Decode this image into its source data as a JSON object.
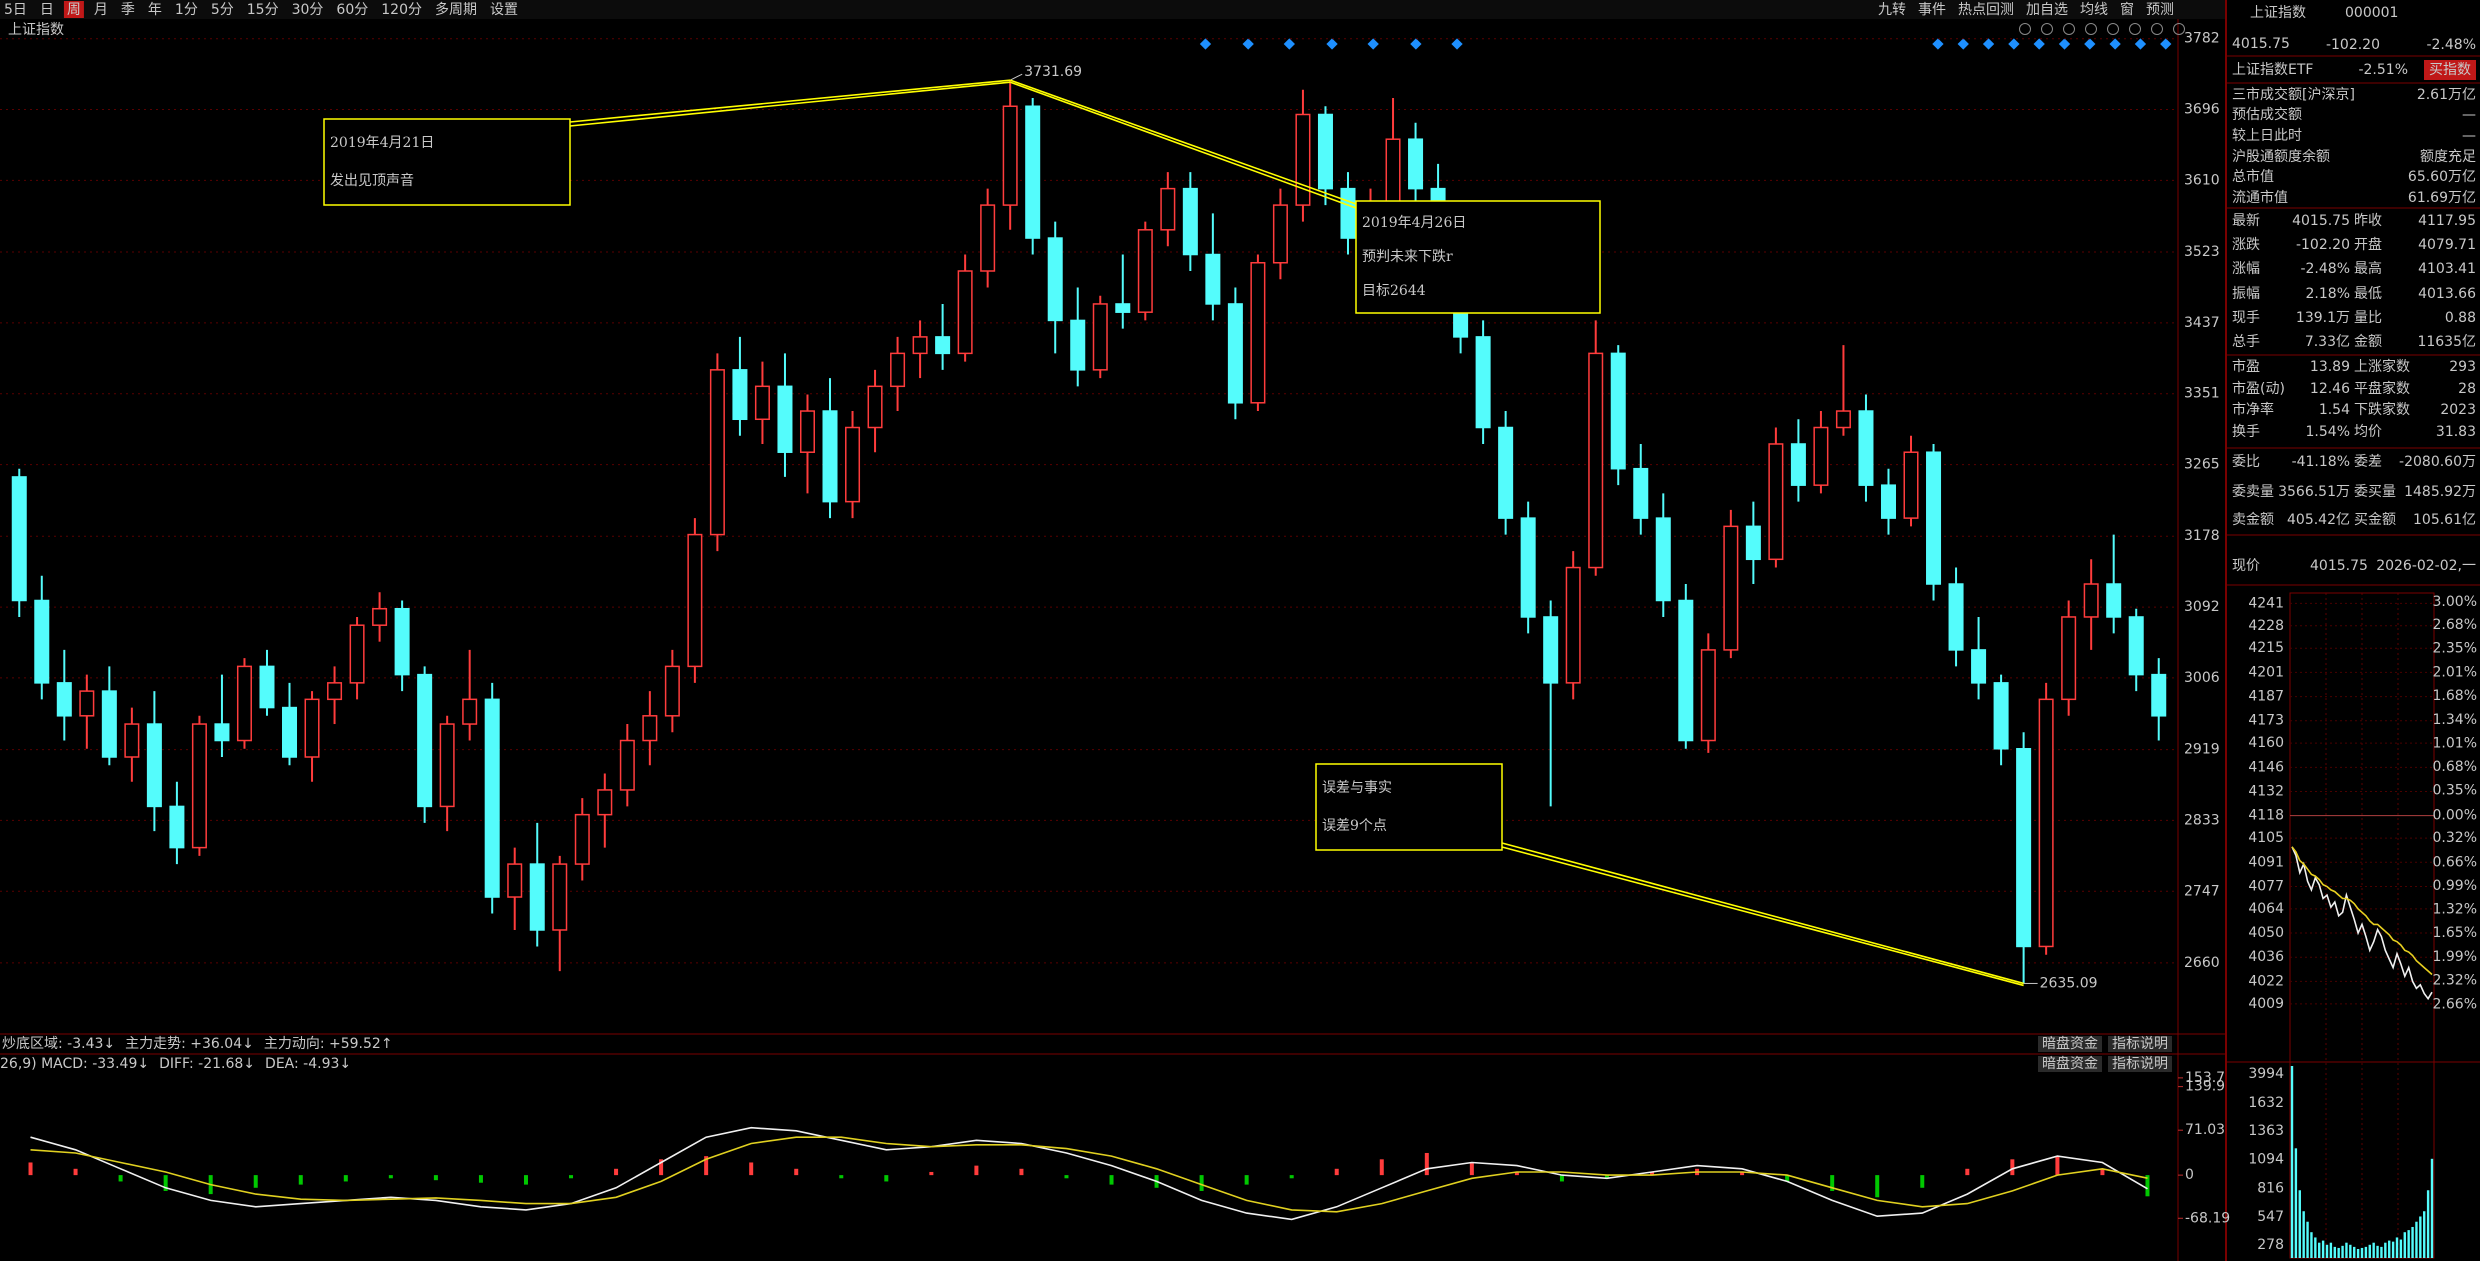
{
  "toolbar": {
    "left": [
      "5日",
      "日",
      "周",
      "月",
      "季",
      "年",
      "1分",
      "5分",
      "15分",
      "30分",
      "60分",
      "120分",
      "多周期",
      "设置"
    ],
    "selected": 2,
    "right": [
      "九转",
      "事件",
      "热点回测",
      "加自选",
      "均线",
      "窗",
      "预测"
    ]
  },
  "chart_data": [
    {
      "type": "candlestick",
      "title": "上证指数",
      "ylim": [
        2581,
        3795
      ],
      "yticks": [
        2660,
        2747,
        2833,
        2919,
        3006,
        3092,
        3178,
        3265,
        3351,
        3437,
        3523,
        3610,
        3696,
        3782
      ],
      "grid": true,
      "up_color": "#ff3c3c",
      "down_color": "#54fcfc",
      "axis_color": "#e03c3c",
      "grid_color": "#5a0000",
      "candles": [
        [
          3250,
          3260,
          3080,
          3100
        ],
        [
          3100,
          3130,
          2980,
          3000
        ],
        [
          3000,
          3040,
          2930,
          2960
        ],
        [
          2960,
          3010,
          2920,
          2990
        ],
        [
          2990,
          3020,
          2900,
          2910
        ],
        [
          2910,
          2970,
          2880,
          2950
        ],
        [
          2950,
          2990,
          2820,
          2850
        ],
        [
          2850,
          2880,
          2780,
          2800
        ],
        [
          2800,
          2960,
          2790,
          2950
        ],
        [
          2950,
          3010,
          2910,
          2930
        ],
        [
          2930,
          3030,
          2920,
          3020
        ],
        [
          3020,
          3040,
          2960,
          2970
        ],
        [
          2970,
          3000,
          2900,
          2910
        ],
        [
          2910,
          2990,
          2880,
          2980
        ],
        [
          2980,
          3020,
          2950,
          3000
        ],
        [
          3000,
          3080,
          2980,
          3070
        ],
        [
          3070,
          3110,
          3050,
          3090
        ],
        [
          3090,
          3100,
          2990,
          3010
        ],
        [
          3010,
          3020,
          2830,
          2850
        ],
        [
          2850,
          2960,
          2820,
          2950
        ],
        [
          2950,
          3040,
          2930,
          2980
        ],
        [
          2980,
          3000,
          2720,
          2740
        ],
        [
          2740,
          2800,
          2700,
          2780
        ],
        [
          2780,
          2830,
          2680,
          2700
        ],
        [
          2700,
          2790,
          2650,
          2780
        ],
        [
          2780,
          2860,
          2760,
          2840
        ],
        [
          2840,
          2890,
          2800,
          2870
        ],
        [
          2870,
          2950,
          2850,
          2930
        ],
        [
          2930,
          2990,
          2900,
          2960
        ],
        [
          2960,
          3040,
          2940,
          3020
        ],
        [
          3020,
          3200,
          3000,
          3180
        ],
        [
          3180,
          3400,
          3160,
          3380
        ],
        [
          3380,
          3420,
          3300,
          3320
        ],
        [
          3320,
          3390,
          3290,
          3360
        ],
        [
          3360,
          3400,
          3250,
          3280
        ],
        [
          3280,
          3350,
          3230,
          3330
        ],
        [
          3330,
          3370,
          3200,
          3220
        ],
        [
          3220,
          3330,
          3200,
          3310
        ],
        [
          3310,
          3380,
          3280,
          3360
        ],
        [
          3360,
          3420,
          3330,
          3400
        ],
        [
          3400,
          3440,
          3370,
          3420
        ],
        [
          3420,
          3460,
          3380,
          3400
        ],
        [
          3400,
          3520,
          3390,
          3500
        ],
        [
          3500,
          3600,
          3480,
          3580
        ],
        [
          3580,
          3731.69,
          3550,
          3700
        ],
        [
          3700,
          3710,
          3520,
          3540
        ],
        [
          3540,
          3560,
          3400,
          3440
        ],
        [
          3440,
          3480,
          3360,
          3380
        ],
        [
          3380,
          3470,
          3370,
          3460
        ],
        [
          3460,
          3520,
          3430,
          3450
        ],
        [
          3450,
          3560,
          3440,
          3550
        ],
        [
          3550,
          3620,
          3530,
          3600
        ],
        [
          3600,
          3620,
          3500,
          3520
        ],
        [
          3520,
          3570,
          3440,
          3460
        ],
        [
          3460,
          3480,
          3320,
          3340
        ],
        [
          3340,
          3520,
          3330,
          3510
        ],
        [
          3510,
          3600,
          3490,
          3580
        ],
        [
          3580,
          3720,
          3560,
          3690
        ],
        [
          3690,
          3700,
          3580,
          3600
        ],
        [
          3600,
          3620,
          3520,
          3540
        ],
        [
          3540,
          3600,
          3510,
          3580
        ],
        [
          3580,
          3710,
          3570,
          3660
        ],
        [
          3660,
          3680,
          3580,
          3600
        ],
        [
          3600,
          3630,
          3520,
          3540
        ],
        [
          3540,
          3560,
          3400,
          3420
        ],
        [
          3420,
          3440,
          3290,
          3310
        ],
        [
          3310,
          3330,
          3180,
          3200
        ],
        [
          3200,
          3220,
          3060,
          3080
        ],
        [
          3080,
          3100,
          2850,
          3000
        ],
        [
          3000,
          3160,
          2980,
          3140
        ],
        [
          3140,
          3440,
          3130,
          3400
        ],
        [
          3400,
          3410,
          3240,
          3260
        ],
        [
          3260,
          3290,
          3180,
          3200
        ],
        [
          3200,
          3230,
          3080,
          3100
        ],
        [
          3100,
          3120,
          2920,
          2930
        ],
        [
          2930,
          3060,
          2915,
          3040
        ],
        [
          3040,
          3210,
          3030,
          3190
        ],
        [
          3190,
          3220,
          3120,
          3150
        ],
        [
          3150,
          3310,
          3140,
          3290
        ],
        [
          3290,
          3320,
          3220,
          3240
        ],
        [
          3240,
          3330,
          3230,
          3310
        ],
        [
          3310,
          3410,
          3300,
          3330
        ],
        [
          3330,
          3350,
          3220,
          3240
        ],
        [
          3240,
          3260,
          3180,
          3200
        ],
        [
          3200,
          3300,
          3190,
          3280
        ],
        [
          3280,
          3290,
          3100,
          3120
        ],
        [
          3120,
          3140,
          3020,
          3040
        ],
        [
          3040,
          3080,
          2980,
          3000
        ],
        [
          3000,
          3010,
          2900,
          2920
        ],
        [
          2920,
          2940,
          2635.09,
          2680
        ],
        [
          2680,
          3000,
          2670,
          2980
        ],
        [
          2980,
          3100,
          2960,
          3080
        ],
        [
          3080,
          3150,
          3040,
          3120
        ],
        [
          3120,
          3180,
          3060,
          3080
        ],
        [
          3080,
          3090,
          2990,
          3010
        ],
        [
          3010,
          3030,
          2930,
          2960
        ]
      ],
      "annotations": [
        {
          "lines": [
            "2019年4月21日",
            "发出见顶声音"
          ]
        },
        {
          "lines": [
            "2019年4月26日",
            "预判未来下跌r",
            "目标2644"
          ]
        },
        {
          "lines": [
            "误差与事实",
            "误差9个点"
          ]
        }
      ],
      "annotation_color": "#ffff00",
      "indicator_bar": [
        {
          "text": "炒底区域: -3.43↓",
          "color": "#c8c8c8"
        },
        {
          "text": "主力走势: +36.04↓",
          "color": "#ff9a1a"
        },
        {
          "text": "主力动向: +59.52↑",
          "color": "#ff4040"
        }
      ],
      "buttons": [
        "暗盘资金",
        "指标说明"
      ]
    },
    {
      "type": "macd",
      "header": [
        {
          "text": "26,9) MACD: -33.49↓",
          "color": "#e0e0e0"
        },
        {
          "text": "DIFF: -21.68↓",
          "color": "#e0e0e0"
        },
        {
          "text": "DEA: -4.93↓",
          "color": "#ffff40"
        }
      ],
      "buttons": [
        "暗盘资金",
        "指标说明"
      ],
      "ylim": [
        -131,
        163
      ],
      "yticks": [
        -68.19,
        0,
        71.03,
        139.9,
        153.7
      ],
      "up_color": "#ff3c3c",
      "down_color": "#00c800",
      "histogram": [
        20,
        10,
        -10,
        -25,
        -30,
        -20,
        -15,
        -10,
        -5,
        -8,
        -12,
        -15,
        -5,
        10,
        25,
        30,
        20,
        10,
        -5,
        -10,
        5,
        15,
        10,
        -5,
        -15,
        -20,
        -25,
        -15,
        -5,
        10,
        25,
        35,
        20,
        5,
        -10,
        -5,
        5,
        10,
        5,
        -10,
        -25,
        -35,
        -20,
        10,
        25,
        30,
        10,
        -33.49
      ],
      "series": [
        {
          "name": "DIFF",
          "color": "#f0f0f0",
          "values": [
            60,
            40,
            10,
            -20,
            -40,
            -50,
            -45,
            -40,
            -35,
            -40,
            -50,
            -55,
            -45,
            -20,
            20,
            60,
            75,
            70,
            55,
            40,
            45,
            55,
            50,
            35,
            15,
            -10,
            -40,
            -60,
            -70,
            -50,
            -20,
            10,
            20,
            15,
            0,
            -5,
            5,
            15,
            10,
            -10,
            -40,
            -65,
            -60,
            -30,
            10,
            30,
            20,
            -21.68
          ]
        },
        {
          "name": "DEA",
          "color": "#e0d020",
          "values": [
            40,
            35,
            20,
            5,
            -15,
            -30,
            -38,
            -40,
            -38,
            -36,
            -40,
            -45,
            -45,
            -35,
            -10,
            25,
            50,
            60,
            60,
            50,
            45,
            48,
            48,
            42,
            30,
            10,
            -15,
            -40,
            -55,
            -58,
            -45,
            -25,
            -5,
            5,
            5,
            0,
            0,
            5,
            5,
            0,
            -20,
            -40,
            -50,
            -45,
            -25,
            0,
            10,
            -4.93
          ]
        }
      ]
    },
    {
      "type": "intraday",
      "ylim": [
        3995,
        4247
      ],
      "yticks": [
        4009,
        4022,
        4036,
        4050,
        4064,
        4077,
        4091,
        4105,
        4118,
        4132,
        4146,
        4160,
        4173,
        4187,
        4201,
        4215,
        4228,
        4241
      ],
      "y2lim": [
        -2.99,
        3.13
      ],
      "y2ticks": [
        {
          "value": -2.66,
          "label": "2.66%"
        },
        {
          "value": -2.32,
          "label": "2.32%"
        },
        {
          "value": -1.99,
          "label": "1.99%"
        },
        {
          "value": -1.65,
          "label": "1.65%"
        },
        {
          "value": -1.32,
          "label": "1.32%"
        },
        {
          "value": -0.99,
          "label": "0.99%"
        },
        {
          "value": -0.66,
          "label": "0.66%"
        },
        {
          "value": -0.32,
          "label": "0.32%"
        },
        {
          "value": 0,
          "label": "0.00%"
        },
        {
          "value": 0.35,
          "label": "0.35%"
        },
        {
          "value": 0.68,
          "label": "0.68%"
        },
        {
          "value": 1.01,
          "label": "1.01%"
        },
        {
          "value": 1.34,
          "label": "1.34%"
        },
        {
          "value": 1.68,
          "label": "1.68%"
        },
        {
          "value": 2.01,
          "label": "2.01%"
        },
        {
          "value": 2.35,
          "label": "2.35%"
        },
        {
          "value": 2.68,
          "label": "2.68%"
        },
        {
          "value": 3.0,
          "label": "3.00%"
        }
      ],
      "series": [
        {
          "name": "价格",
          "color": "#f0f0f0",
          "values": [
            4100,
            4095,
            4085,
            4090,
            4080,
            4075,
            4082,
            4078,
            4070,
            4072,
            4065,
            4068,
            4060,
            4062,
            4072,
            4065,
            4058,
            4050,
            4055,
            4048,
            4040,
            4045,
            4052,
            4048,
            4040,
            4035,
            4030,
            4038,
            4032,
            4025,
            4030,
            4022,
            4018,
            4020,
            4015,
            4012,
            4015.75
          ]
        },
        {
          "name": "均价",
          "color": "#e8d020",
          "values": [
            4100,
            4097,
            4092,
            4090,
            4087,
            4084,
            4083,
            4081,
            4078,
            4077,
            4075,
            4074,
            4072,
            4070,
            4070,
            4069,
            4067,
            4064,
            4062,
            4060,
            4057,
            4055,
            4055,
            4053,
            4051,
            4049,
            4046,
            4045,
            4043,
            4040,
            4039,
            4037,
            4034,
            4032,
            4030,
            4028,
            4026
          ]
        }
      ],
      "volume": [
        3600,
        1200,
        800,
        600,
        500,
        400,
        350,
        300,
        320,
        280,
        300,
        260,
        250,
        270,
        300,
        280,
        260,
        240,
        250,
        260,
        280,
        300,
        270,
        260,
        300,
        320,
        310,
        350,
        330,
        400,
        420,
        450,
        500,
        550,
        600,
        800,
        1100
      ],
      "volume_color": "#54fcfc",
      "volume_ylim": [
        154,
        1985
      ],
      "volume_ticks": [
        278,
        547,
        816,
        1094,
        1363,
        1632
      ],
      "volume_top_label": 3994
    }
  ],
  "quote": {
    "name": "上证指数",
    "code": "000001",
    "price": "4015.75",
    "change": "-102.20",
    "pct": "-2.48%",
    "etf": {
      "name": "上证指数ETF",
      "pct": "-2.51%",
      "button": "买指数"
    },
    "stats": [
      {
        "label": "三市成交额[沪深京]",
        "value": "2.61万亿",
        "color": "#54fcfc"
      },
      {
        "label": "预估成交额",
        "value": "—",
        "color": "#c8c8c8"
      },
      {
        "label": "较上日此时",
        "value": "—",
        "color": "#c8c8c8"
      },
      {
        "label": "沪股通额度余额",
        "value": "额度充足",
        "color": "#54fcfc"
      },
      {
        "label": "总市值",
        "value": "65.60万亿",
        "color": "#54fcfc"
      },
      {
        "label": "流通市值",
        "value": "61.69万亿",
        "color": "#54fcfc"
      }
    ],
    "grid": [
      {
        "l1": "最新",
        "v1": "4015.75",
        "c1": "#00e000",
        "l2": "昨收",
        "v2": "4117.95",
        "c2": "#f0f0f0"
      },
      {
        "l1": "涨跌",
        "v1": "-102.20",
        "c1": "#00e000",
        "l2": "开盘",
        "v2": "4079.71",
        "c2": "#00e000"
      },
      {
        "l1": "涨幅",
        "v1": "-2.48%",
        "c1": "#00e000",
        "l2": "最高",
        "v2": "4103.41",
        "c2": "#00e000"
      },
      {
        "l1": "振幅",
        "v1": "2.18%",
        "c1": "#54fcfc",
        "l2": "最低",
        "v2": "4013.66",
        "c2": "#00e000"
      },
      {
        "l1": "现手",
        "v1": "139.1万",
        "c1": "#54fcfc",
        "l2": "量比",
        "v2": "0.88",
        "c2": "#e8d020"
      },
      {
        "l1": "总手",
        "v1": "7.33亿",
        "c1": "#54fcfc",
        "l2": "金额",
        "v2": "11635亿",
        "c2": "#54fcfc"
      },
      {
        "l1": "市盈",
        "v1": "13.89",
        "c1": "#f0f0f0",
        "l2": "上涨家数",
        "v2": "293",
        "c2": "#ff3c3c"
      },
      {
        "l1": "市盈(动)",
        "v1": "12.46",
        "c1": "#f0f0f0",
        "l2": "平盘家数",
        "v2": "28",
        "c2": "#f0f0f0"
      },
      {
        "l1": "市净率",
        "v1": "1.54",
        "c1": "#f0f0f0",
        "l2": "下跌家数",
        "v2": "2023",
        "c2": "#00e000"
      },
      {
        "l1": "换手",
        "v1": "1.54%",
        "c1": "#54fcfc",
        "l2": "均价",
        "v2": "31.83",
        "c2": "#e8d020"
      },
      {
        "l1": "委比",
        "v1": "-41.18%",
        "c1": "#00e000",
        "l2": "委差",
        "v2": "-2080.60万",
        "c2": "#00e000"
      },
      {
        "l1": "委卖量",
        "v1": "3566.51万",
        "c1": "#54fcfc",
        "l2": "委买量",
        "v2": "1485.92万",
        "c2": "#ff3c3c"
      },
      {
        "l1": "卖金额",
        "v1": "405.42亿",
        "c1": "#54fcfc",
        "l2": "买金额",
        "v2": "105.61亿",
        "c2": "#54fcfc"
      }
    ],
    "now": {
      "label": "现价",
      "value": "4015.75",
      "date": "2026-02-02,一"
    }
  }
}
